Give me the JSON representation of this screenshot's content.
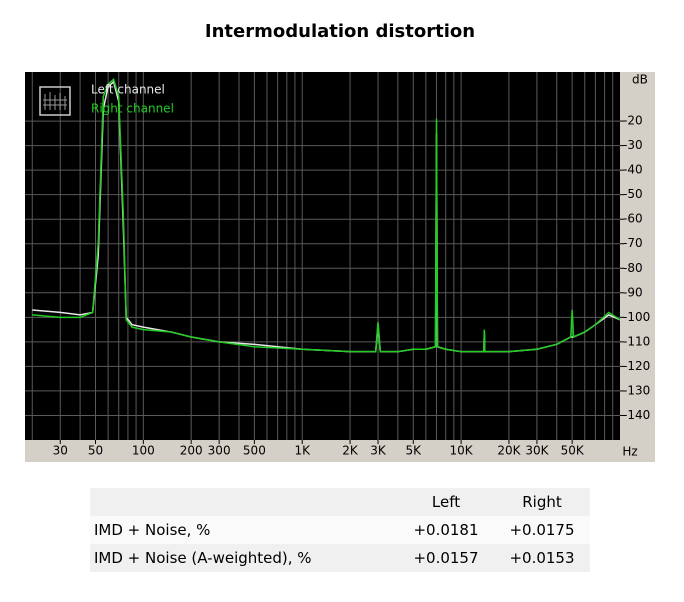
{
  "chart_data": {
    "type": "line",
    "title": "Intermodulation distortion",
    "y_label": "dB",
    "x_label": "Hz",
    "x_scale": "log",
    "grid": true,
    "legend": "top-left",
    "x": [
      20,
      30,
      40,
      48,
      52,
      56,
      60,
      65,
      70,
      75,
      78,
      85,
      100,
      150,
      200,
      300,
      500,
      1000,
      2000,
      2900,
      3000,
      3100,
      4000,
      5000,
      6000,
      6900,
      7000,
      7100,
      8000,
      10000,
      13900,
      14000,
      14100,
      20000,
      30000,
      40000,
      49000,
      50000,
      51000,
      60000,
      70000,
      85000,
      100000
    ],
    "series": [
      {
        "name": "Left channel",
        "color": "#e8e8e8",
        "values": [
          -97,
          -98,
          -99,
          -98,
          -75,
          -15,
          -6,
          -4,
          -12,
          -65,
          -100,
          -103,
          -104,
          -106,
          -108,
          -110,
          -111,
          -113,
          -114,
          -114,
          -103,
          -114,
          -114,
          -113,
          -113,
          -112,
          -25,
          -112,
          -113,
          -114,
          -114,
          -106,
          -114,
          -114,
          -113,
          -111,
          -108,
          -108,
          -108,
          -106,
          -103,
          -99,
          -101
        ]
      },
      {
        "name": "Right channel",
        "color": "#22cc22",
        "values": [
          -99,
          -100,
          -100,
          -98,
          -70,
          -10,
          -5,
          -3,
          -10,
          -60,
          -101,
          -104,
          -105,
          -106,
          -108,
          -110,
          -112,
          -113,
          -114,
          -114,
          -102,
          -114,
          -114,
          -113,
          -113,
          -112,
          -19,
          -112,
          -113,
          -114,
          -114,
          -105,
          -114,
          -114,
          -113,
          -111,
          -108,
          -97,
          -108,
          -106,
          -103,
          -98,
          -101
        ]
      }
    ],
    "xlim": [
      18,
      100000
    ],
    "xticks": [
      30,
      50,
      100,
      200,
      300,
      500,
      {
        "value": 1000,
        "label": "1K"
      },
      {
        "value": 2000,
        "label": "2K"
      },
      {
        "value": 3000,
        "label": "3K"
      },
      {
        "value": 5000,
        "label": "5K"
      },
      {
        "value": 10000,
        "label": "10K"
      },
      {
        "value": 20000,
        "label": "20K"
      },
      {
        "value": 30000,
        "label": "30K"
      },
      {
        "value": 50000,
        "label": "50K"
      }
    ],
    "x_gridlines": [
      20,
      30,
      40,
      50,
      60,
      70,
      80,
      90,
      100,
      200,
      300,
      400,
      500,
      600,
      700,
      800,
      900,
      1000,
      2000,
      3000,
      4000,
      5000,
      6000,
      7000,
      8000,
      9000,
      10000,
      20000,
      30000,
      40000,
      50000,
      60000,
      70000,
      80000,
      90000
    ],
    "ylim": [
      -150,
      0
    ],
    "yticks": [
      -20,
      -30,
      -40,
      -50,
      -60,
      -70,
      -80,
      -90,
      -100,
      -110,
      -120,
      -130,
      -140
    ]
  },
  "table": {
    "columns": [
      "Left",
      "Right"
    ],
    "rows": [
      {
        "label": "IMD + Noise, %",
        "values": [
          "+0.0181",
          "+0.0175"
        ]
      },
      {
        "label": "IMD + Noise (A-weighted), %",
        "values": [
          "+0.0157",
          "+0.0153"
        ]
      }
    ]
  }
}
